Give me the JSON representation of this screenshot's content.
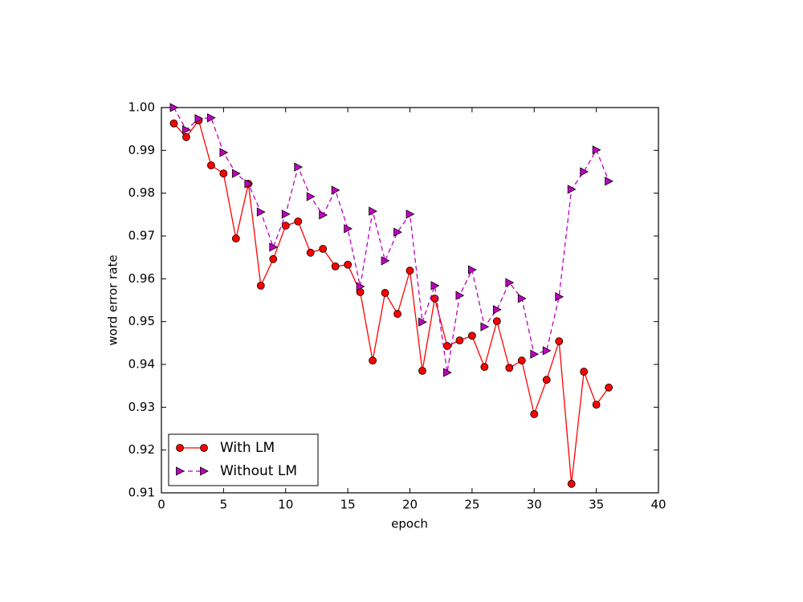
{
  "chart_data": {
    "type": "line",
    "x_label": "epoch",
    "y_label": "word error rate",
    "x": [
      1,
      2,
      3,
      4,
      5,
      6,
      7,
      8,
      9,
      10,
      11,
      12,
      13,
      14,
      15,
      16,
      17,
      18,
      19,
      20,
      21,
      22,
      23,
      24,
      25,
      26,
      27,
      28,
      29,
      30,
      31,
      32,
      33,
      34,
      35,
      36
    ],
    "series": [
      {
        "name": "With LM",
        "color": "#ff0000",
        "marker": "circle",
        "linestyle": "solid",
        "values": [
          0.9963,
          0.9931,
          0.997,
          0.9865,
          0.9846,
          0.9694,
          0.9822,
          0.9584,
          0.9646,
          0.9724,
          0.9734,
          0.9661,
          0.967,
          0.9629,
          0.9633,
          0.9569,
          0.9409,
          0.9567,
          0.9518,
          0.9619,
          0.9385,
          0.9554,
          0.9443,
          0.9456,
          0.9467,
          0.9394,
          0.9501,
          0.9392,
          0.9409,
          0.9284,
          0.9364,
          0.9454,
          0.9121,
          0.9383,
          0.9306,
          0.9346
        ]
      },
      {
        "name": "Without LM",
        "color": "#bf00bf",
        "marker": "triangle-right",
        "linestyle": "dashed",
        "values": [
          1.0,
          0.9948,
          0.9974,
          0.9976,
          0.9895,
          0.9846,
          0.9822,
          0.9756,
          0.9674,
          0.9751,
          0.9861,
          0.9792,
          0.9749,
          0.9807,
          0.9717,
          0.9582,
          0.9758,
          0.9642,
          0.9709,
          0.9751,
          0.9499,
          0.9584,
          0.9381,
          0.9561,
          0.9621,
          0.9488,
          0.9528,
          0.9591,
          0.9554,
          0.9424,
          0.9432,
          0.9558,
          0.9809,
          0.985,
          0.9901,
          0.9828
        ]
      }
    ],
    "xlim": [
      0,
      40
    ],
    "xticks": [
      0,
      5,
      10,
      15,
      20,
      25,
      30,
      35,
      40
    ],
    "ylim": [
      0.91,
      1.0
    ],
    "yticks": [
      0.91,
      0.92,
      0.93,
      0.94,
      0.95,
      0.96,
      0.97,
      0.98,
      0.99,
      {
        "value": 1.0,
        "label": "1.00"
      }
    ],
    "grid": false,
    "legend": "lower left"
  }
}
